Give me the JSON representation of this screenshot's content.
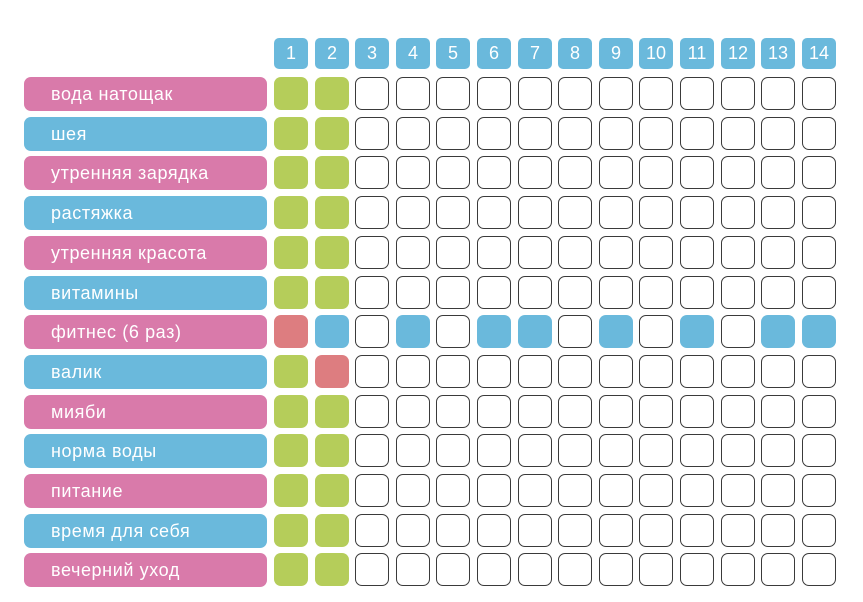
{
  "colors": {
    "header_blue": "#6ab9dc",
    "label_pink": "#d97aaa",
    "label_blue": "#6ab9dc",
    "cell_green": "#b5cd5a",
    "cell_blue": "#6ab9dc",
    "cell_red": "#dd7d80",
    "cell_border": "#3a3a3a"
  },
  "days": [
    "1",
    "2",
    "3",
    "4",
    "5",
    "6",
    "7",
    "8",
    "9",
    "10",
    "11",
    "12",
    "13",
    "14"
  ],
  "rows": [
    {
      "label": "вода натощак",
      "color": "pink",
      "cells": [
        "green",
        "green",
        "empty",
        "empty",
        "empty",
        "empty",
        "empty",
        "empty",
        "empty",
        "empty",
        "empty",
        "empty",
        "empty",
        "empty"
      ]
    },
    {
      "label": "шея",
      "color": "blue",
      "cells": [
        "green",
        "green",
        "empty",
        "empty",
        "empty",
        "empty",
        "empty",
        "empty",
        "empty",
        "empty",
        "empty",
        "empty",
        "empty",
        "empty"
      ]
    },
    {
      "label": "утренняя зарядка",
      "color": "pink",
      "cells": [
        "green",
        "green",
        "empty",
        "empty",
        "empty",
        "empty",
        "empty",
        "empty",
        "empty",
        "empty",
        "empty",
        "empty",
        "empty",
        "empty"
      ]
    },
    {
      "label": "растяжка",
      "color": "blue",
      "cells": [
        "green",
        "green",
        "empty",
        "empty",
        "empty",
        "empty",
        "empty",
        "empty",
        "empty",
        "empty",
        "empty",
        "empty",
        "empty",
        "empty"
      ]
    },
    {
      "label": "утренняя красота",
      "color": "pink",
      "cells": [
        "green",
        "green",
        "empty",
        "empty",
        "empty",
        "empty",
        "empty",
        "empty",
        "empty",
        "empty",
        "empty",
        "empty",
        "empty",
        "empty"
      ]
    },
    {
      "label": "витамины",
      "color": "blue",
      "cells": [
        "green",
        "green",
        "empty",
        "empty",
        "empty",
        "empty",
        "empty",
        "empty",
        "empty",
        "empty",
        "empty",
        "empty",
        "empty",
        "empty"
      ]
    },
    {
      "label": "фитнес (6 раз)",
      "color": "pink",
      "cells": [
        "red",
        "blue",
        "empty",
        "blue",
        "empty",
        "blue",
        "blue",
        "empty",
        "blue",
        "empty",
        "blue",
        "empty",
        "blue",
        "blue"
      ]
    },
    {
      "label": "валик",
      "color": "blue",
      "cells": [
        "green",
        "red",
        "empty",
        "empty",
        "empty",
        "empty",
        "empty",
        "empty",
        "empty",
        "empty",
        "empty",
        "empty",
        "empty",
        "empty"
      ]
    },
    {
      "label": "мияби",
      "color": "pink",
      "cells": [
        "green",
        "green",
        "empty",
        "empty",
        "empty",
        "empty",
        "empty",
        "empty",
        "empty",
        "empty",
        "empty",
        "empty",
        "empty",
        "empty"
      ]
    },
    {
      "label": "норма воды",
      "color": "blue",
      "cells": [
        "green",
        "green",
        "empty",
        "empty",
        "empty",
        "empty",
        "empty",
        "empty",
        "empty",
        "empty",
        "empty",
        "empty",
        "empty",
        "empty"
      ]
    },
    {
      "label": "питание",
      "color": "pink",
      "cells": [
        "green",
        "green",
        "empty",
        "empty",
        "empty",
        "empty",
        "empty",
        "empty",
        "empty",
        "empty",
        "empty",
        "empty",
        "empty",
        "empty"
      ]
    },
    {
      "label": "время для себя",
      "color": "blue",
      "cells": [
        "green",
        "green",
        "empty",
        "empty",
        "empty",
        "empty",
        "empty",
        "empty",
        "empty",
        "empty",
        "empty",
        "empty",
        "empty",
        "empty"
      ]
    },
    {
      "label": "вечерний уход",
      "color": "pink",
      "cells": [
        "green",
        "green",
        "empty",
        "empty",
        "empty",
        "empty",
        "empty",
        "empty",
        "empty",
        "empty",
        "empty",
        "empty",
        "empty",
        "empty"
      ]
    }
  ]
}
